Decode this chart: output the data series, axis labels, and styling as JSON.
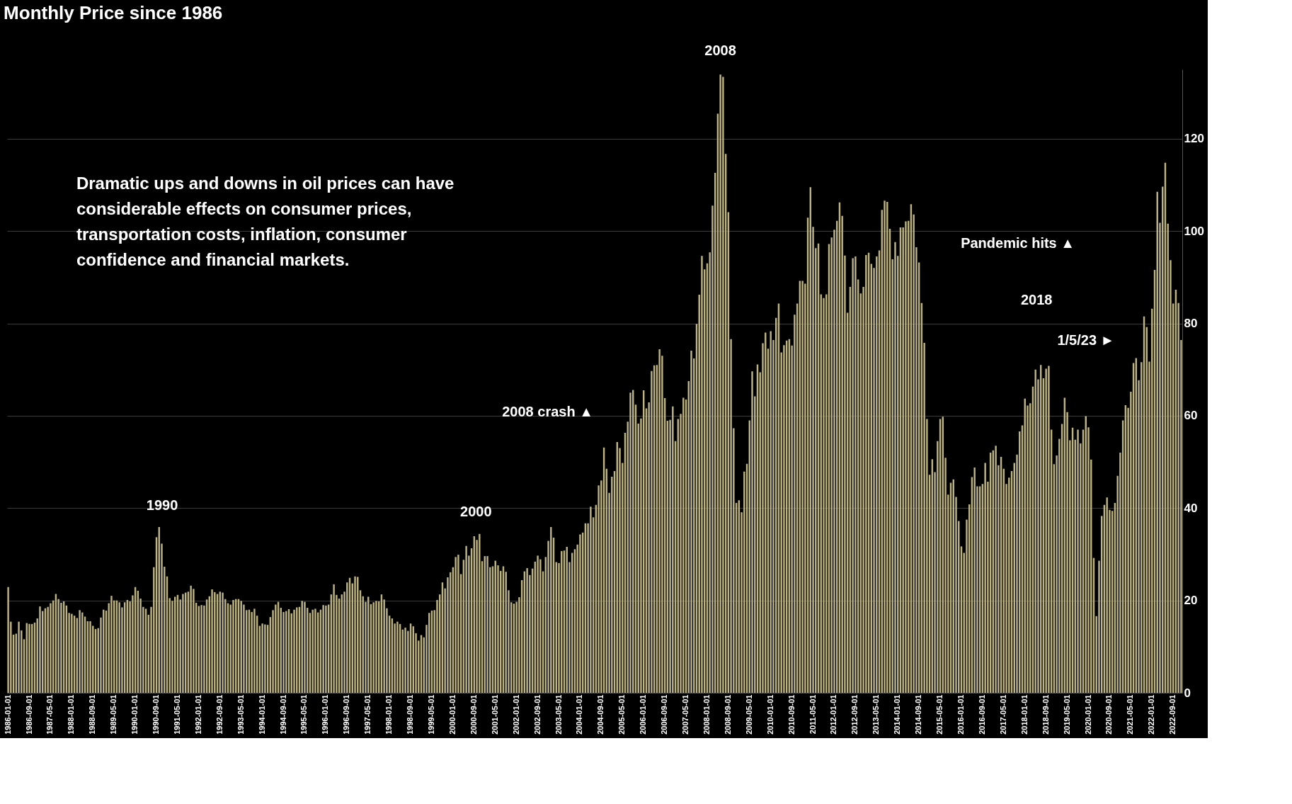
{
  "chart_data": {
    "type": "bar",
    "title": "Monthly Price since 1986",
    "color": "#bdb482",
    "ylim": [
      0,
      135
    ],
    "yticks": [
      0,
      20,
      40,
      60,
      80,
      100,
      120
    ],
    "grid": "y",
    "annotations": [
      "Dramatic ups and downs in oil prices can have considerable effects on consumer prices, transportation costs, inflation, consumer confidence and financial markets.",
      "1990",
      "2000",
      "2008",
      "2008 crash ▲",
      "2018",
      "Pandemic hits ▲",
      "1/5/23 ►"
    ],
    "categories": [
      "1986-01-01",
      null,
      null,
      null,
      null,
      null,
      null,
      null,
      "1986-09-01",
      null,
      null,
      null,
      null,
      null,
      null,
      null,
      "1987-05-01",
      null,
      null,
      null,
      null,
      null,
      null,
      null,
      "1988-01-01",
      null,
      null,
      null,
      null,
      null,
      null,
      null,
      "1988-09-01",
      null,
      null,
      null,
      null,
      null,
      null,
      null,
      "1989-05-01",
      null,
      null,
      null,
      null,
      null,
      null,
      null,
      "1990-01-01",
      null,
      null,
      null,
      null,
      null,
      null,
      null,
      "1990-09-01",
      null,
      null,
      null,
      null,
      null,
      null,
      null,
      "1991-05-01",
      null,
      null,
      null,
      null,
      null,
      null,
      null,
      "1992-01-01",
      null,
      null,
      null,
      null,
      null,
      null,
      null,
      "1992-09-01",
      null,
      null,
      null,
      null,
      null,
      null,
      null,
      "1993-05-01",
      null,
      null,
      null,
      null,
      null,
      null,
      null,
      "1994-01-01",
      null,
      null,
      null,
      null,
      null,
      null,
      null,
      "1994-09-01",
      null,
      null,
      null,
      null,
      null,
      null,
      null,
      "1995-05-01",
      null,
      null,
      null,
      null,
      null,
      null,
      null,
      "1996-01-01",
      null,
      null,
      null,
      null,
      null,
      null,
      null,
      "1996-09-01",
      null,
      null,
      null,
      null,
      null,
      null,
      null,
      "1997-05-01",
      null,
      null,
      null,
      null,
      null,
      null,
      null,
      "1998-01-01",
      null,
      null,
      null,
      null,
      null,
      null,
      null,
      "1998-09-01",
      null,
      null,
      null,
      null,
      null,
      null,
      null,
      "1999-05-01",
      null,
      null,
      null,
      null,
      null,
      null,
      null,
      "2000-01-01",
      null,
      null,
      null,
      null,
      null,
      null,
      null,
      "2000-09-01",
      null,
      null,
      null,
      null,
      null,
      null,
      null,
      "2001-05-01",
      null,
      null,
      null,
      null,
      null,
      null,
      null,
      "2002-01-01",
      null,
      null,
      null,
      null,
      null,
      null,
      null,
      "2002-09-01",
      null,
      null,
      null,
      null,
      null,
      null,
      null,
      "2003-05-01",
      null,
      null,
      null,
      null,
      null,
      null,
      null,
      "2004-01-01",
      null,
      null,
      null,
      null,
      null,
      null,
      null,
      "2004-09-01",
      null,
      null,
      null,
      null,
      null,
      null,
      null,
      "2005-05-01",
      null,
      null,
      null,
      null,
      null,
      null,
      null,
      "2006-01-01",
      null,
      null,
      null,
      null,
      null,
      null,
      null,
      "2006-09-01",
      null,
      null,
      null,
      null,
      null,
      null,
      null,
      "2007-05-01",
      null,
      null,
      null,
      null,
      null,
      null,
      null,
      "2008-01-01",
      null,
      null,
      null,
      null,
      null,
      null,
      null,
      "2008-09-01",
      null,
      null,
      null,
      null,
      null,
      null,
      null,
      "2009-05-01",
      null,
      null,
      null,
      null,
      null,
      null,
      null,
      "2010-01-01",
      null,
      null,
      null,
      null,
      null,
      null,
      null,
      "2010-09-01",
      null,
      null,
      null,
      null,
      null,
      null,
      null,
      "2011-05-01",
      null,
      null,
      null,
      null,
      null,
      null,
      null,
      "2012-01-01",
      null,
      null,
      null,
      null,
      null,
      null,
      null,
      "2012-09-01",
      null,
      null,
      null,
      null,
      null,
      null,
      null,
      "2013-05-01",
      null,
      null,
      null,
      null,
      null,
      null,
      null,
      "2014-01-01",
      null,
      null,
      null,
      null,
      null,
      null,
      null,
      "2014-09-01",
      null,
      null,
      null,
      null,
      null,
      null,
      null,
      "2015-05-01",
      null,
      null,
      null,
      null,
      null,
      null,
      null,
      "2016-01-01",
      null,
      null,
      null,
      null,
      null,
      null,
      null,
      "2016-09-01",
      null,
      null,
      null,
      null,
      null,
      null,
      null,
      "2017-05-01",
      null,
      null,
      null,
      null,
      null,
      null,
      null,
      "2018-01-01",
      null,
      null,
      null,
      null,
      null,
      null,
      null,
      "2018-09-01",
      null,
      null,
      null,
      null,
      null,
      null,
      null,
      "2019-05-01",
      null,
      null,
      null,
      null,
      null,
      null,
      null,
      "2020-01-01",
      null,
      null,
      null,
      null,
      null,
      null,
      null,
      "2020-09-01",
      null,
      null,
      null,
      null,
      null,
      null,
      null,
      "2021-05-01",
      null,
      null,
      null,
      null,
      null,
      null,
      null,
      "2022-01-01",
      null,
      null,
      null,
      null,
      null,
      null,
      null,
      "2022-09-01",
      null,
      null,
      null
    ],
    "values": [
      22.9,
      15.4,
      12.6,
      12.8,
      15.4,
      13.5,
      11.6,
      15.1,
      14.9,
      14.9,
      15.2,
      16.1,
      18.7,
      17.7,
      18.3,
      18.6,
      19.4,
      20.0,
      21.4,
      20.3,
      19.5,
      19.8,
      18.9,
      17.3,
      17.1,
      16.7,
      16.2,
      17.9,
      17.4,
      16.5,
      15.5,
      15.5,
      14.5,
      13.8,
      14.0,
      16.3,
      18.0,
      17.8,
      19.4,
      21.0,
      20.0,
      20.0,
      19.6,
      18.5,
      19.6,
      20.1,
      19.8,
      21.1,
      22.9,
      22.1,
      20.4,
      18.6,
      18.2,
      16.9,
      18.6,
      27.2,
      33.7,
      35.9,
      32.3,
      27.3,
      25.2,
      20.5,
      19.9,
      20.8,
      21.2,
      20.2,
      21.4,
      21.7,
      21.9,
      23.2,
      22.5,
      19.5,
      18.8,
      19.0,
      18.9,
      20.2,
      20.9,
      22.4,
      21.8,
      21.4,
      21.9,
      21.7,
      20.3,
      19.4,
      19.1,
      20.1,
      20.3,
      20.3,
      19.9,
      19.1,
      17.9,
      18.0,
      17.5,
      18.2,
      16.7,
      14.5,
      15.0,
      14.8,
      14.7,
      16.4,
      17.9,
      19.1,
      19.7,
      18.4,
      17.5,
      17.7,
      18.1,
      17.2,
      18.0,
      18.5,
      18.6,
      19.9,
      19.7,
      18.4,
      17.3,
      18.0,
      18.2,
      17.4,
      18.0,
      19.0,
      18.9,
      19.1,
      21.3,
      23.5,
      21.2,
      20.4,
      21.3,
      21.9,
      23.9,
      24.9,
      23.7,
      25.2,
      25.1,
      22.2,
      20.9,
      19.7,
      20.8,
      19.2,
      19.6,
      19.9,
      19.8,
      21.3,
      20.2,
      18.3,
      16.7,
      16.1,
      15.0,
      15.4,
      14.9,
      13.7,
      14.1,
      13.4,
      15.0,
      14.4,
      12.9,
      11.3,
      12.5,
      12.0,
      14.7,
      17.3,
      17.8,
      17.9,
      20.1,
      21.3,
      23.9,
      22.6,
      25.0,
      26.1,
      27.2,
      29.4,
      29.9,
      25.7,
      28.8,
      31.8,
      29.7,
      31.3,
      33.9,
      33.1,
      34.4,
      28.5,
      29.6,
      29.6,
      27.2,
      27.4,
      28.6,
      27.6,
      26.4,
      27.4,
      26.2,
      22.2,
      19.6,
      19.3,
      19.7,
      20.7,
      24.4,
      26.3,
      27.0,
      25.5,
      26.9,
      28.4,
      29.7,
      28.9,
      26.3,
      29.4,
      32.9,
      35.9,
      33.6,
      28.3,
      28.1,
      30.7,
      30.8,
      31.6,
      28.3,
      30.3,
      31.1,
      32.1,
      34.3,
      34.7,
      36.7,
      36.7,
      40.3,
      38.0,
      40.7,
      44.9,
      46.0,
      53.1,
      48.5,
      43.3,
      46.8,
      48.0,
      54.3,
      53.0,
      49.8,
      56.3,
      58.7,
      65.0,
      65.6,
      62.4,
      58.3,
      59.4,
      65.5,
      61.6,
      62.9,
      69.7,
      70.9,
      71.0,
      74.4,
      73.0,
      63.8,
      58.9,
      59.1,
      62.0,
      54.5,
      59.3,
      60.4,
      63.9,
      63.5,
      67.5,
      74.1,
      72.4,
      79.9,
      86.2,
      94.6,
      91.7,
      93.0,
      95.4,
      105.5,
      112.6,
      125.4,
      133.9,
      133.4,
      116.7,
      104.1,
      76.6,
      57.3,
      41.1,
      41.7,
      39.1,
      47.9,
      49.6,
      59.0,
      69.6,
      64.2,
      71.1,
      69.4,
      75.7,
      78.0,
      74.5,
      78.3,
      76.4,
      81.2,
      84.3,
      73.7,
      75.3,
      76.3,
      76.6,
      75.2,
      81.9,
      84.3,
      89.2,
      89.2,
      88.6,
      102.9,
      109.5,
      100.9,
      96.3,
      97.3,
      86.3,
      85.5,
      86.3,
      97.2,
      98.6,
      100.3,
      102.2,
      106.2,
      103.3,
      94.7,
      82.3,
      87.9,
      94.1,
      94.5,
      89.5,
      86.5,
      87.9,
      94.8,
      95.3,
      92.9,
      92.0,
      94.5,
      95.8,
      104.6,
      106.6,
      106.3,
      100.5,
      93.9,
      97.6,
      94.6,
      100.8,
      100.8,
      102.1,
      102.2,
      105.8,
      103.6,
      96.5,
      93.2,
      84.4,
      75.8,
      59.3,
      47.2,
      50.6,
      47.8,
      54.5,
      59.3,
      59.8,
      50.9,
      42.9,
      45.5,
      46.2,
      42.4,
      37.2,
      31.7,
      30.3,
      37.5,
      40.8,
      46.7,
      48.8,
      44.7,
      44.7,
      45.2,
      49.8,
      45.7,
      52.0,
      52.5,
      53.5,
      49.3,
      51.1,
      48.5,
      45.2,
      46.6,
      48.0,
      49.8,
      51.6,
      56.6,
      57.9,
      63.7,
      62.2,
      62.7,
      66.3,
      70.0,
      67.9,
      71.0,
      68.1,
      70.2,
      70.8,
      57.0,
      49.5,
      51.4,
      55.0,
      58.2,
      63.9,
      60.8,
      54.7,
      57.4,
      54.8,
      57.0,
      54.0,
      57.0,
      59.9,
      57.5,
      50.5,
      29.2,
      16.6,
      28.6,
      38.3,
      40.7,
      42.3,
      39.6,
      39.4,
      41.1,
      47.0,
      52.0,
      59.0,
      62.3,
      61.7,
      65.2,
      71.4,
      72.5,
      67.7,
      71.6,
      81.5,
      79.2,
      71.7,
      83.2,
      91.6,
      108.5,
      101.8,
      109.6,
      114.8,
      101.6,
      93.7,
      84.3,
      87.3,
      84.4,
      76.4
    ]
  }
}
